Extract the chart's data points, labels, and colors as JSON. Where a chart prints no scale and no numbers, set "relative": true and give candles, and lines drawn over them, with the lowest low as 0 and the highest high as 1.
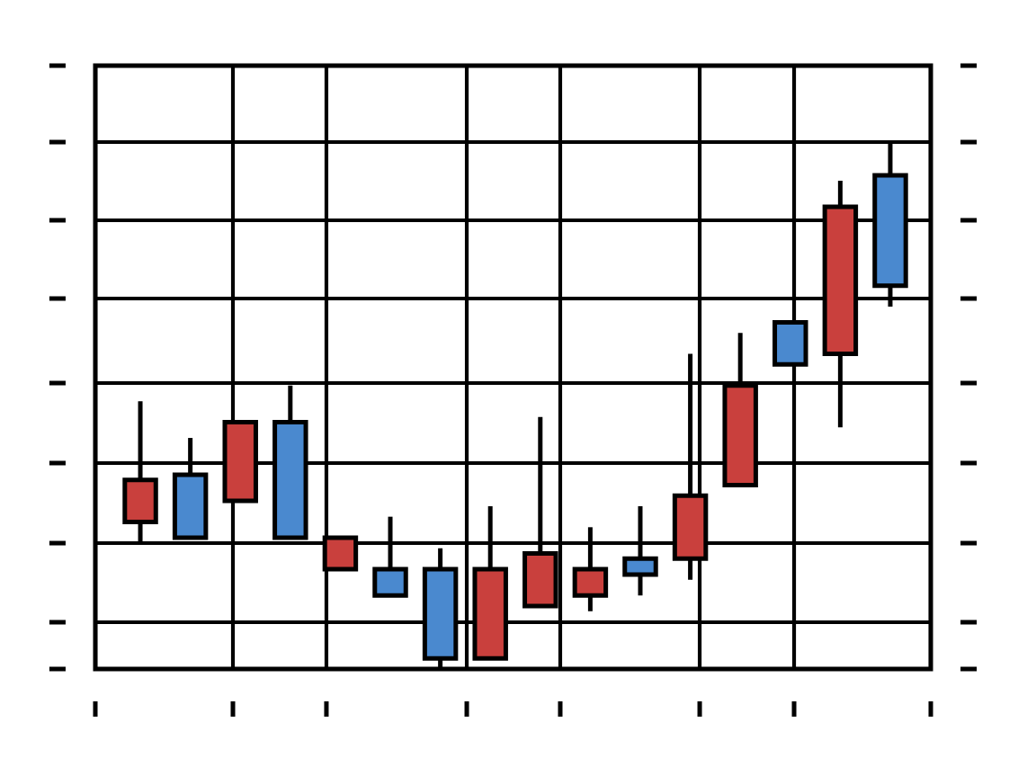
{
  "chart_data": {
    "type": "candlestick",
    "relative": true,
    "categories": [
      null,
      null,
      null,
      null,
      null,
      null,
      null,
      null,
      null,
      null,
      null,
      null,
      null,
      null,
      null,
      null
    ],
    "ohlc": [
      [
        0.28,
        0.51,
        0.24,
        0.36
      ],
      [
        0.37,
        0.44,
        0.25,
        0.25
      ],
      [
        0.32,
        0.47,
        0.32,
        0.47
      ],
      [
        0.47,
        0.54,
        0.25,
        0.25
      ],
      [
        0.19,
        0.25,
        0.19,
        0.25
      ],
      [
        0.19,
        0.29,
        0.14,
        0.14
      ],
      [
        0.19,
        0.23,
        0,
        0.02
      ],
      [
        0.02,
        0.31,
        0.02,
        0.19
      ],
      [
        0.12,
        0.48,
        0.12,
        0.22
      ],
      [
        0.14,
        0.27,
        0.11,
        0.19
      ],
      [
        0.21,
        0.31,
        0.14,
        0.18
      ],
      [
        0.21,
        0.6,
        0.17,
        0.33
      ],
      [
        0.35,
        0.64,
        0.35,
        0.54
      ],
      [
        0.66,
        0.66,
        0.58,
        0.58
      ],
      [
        0.6,
        0.93,
        0.46,
        0.88
      ],
      [
        0.94,
        1,
        0.69,
        0.73
      ]
    ],
    "colors": [
      "#c9403d",
      "#4a89cf",
      "#c9403d",
      "#4a89cf",
      "#c9403d",
      "#4a89cf",
      "#4a89cf",
      "#c9403d",
      "#c9403d",
      "#c9403d",
      "#4a89cf",
      "#c9403d",
      "#c9403d",
      "#4a89cf",
      "#c9403d",
      "#4a89cf"
    ],
    "grid": true,
    "tick_labels": false
  }
}
